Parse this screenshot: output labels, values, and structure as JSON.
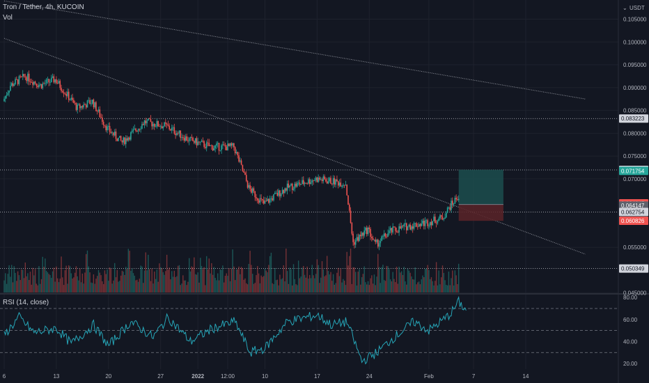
{
  "header": {
    "symbol_title": "Tron / Tether, 4h, KUCOIN",
    "volume_label": "Vol",
    "rsi_label": "RSI (14, close)",
    "currency": "USDT"
  },
  "colors": {
    "background": "#131722",
    "up": "#26a69a",
    "down": "#ef5350",
    "rsi_line": "#26a6b8",
    "grid": "#1e222d",
    "target_zone": "#1c4e4d",
    "stop_zone": "#5a2328"
  },
  "chart_data": [
    {
      "type": "candlestick",
      "title": "Tron / Tether, 4h, KUCOIN",
      "y_axis_ticks": [
        0.105,
        0.1,
        0.095,
        0.09,
        0.085,
        0.08,
        0.075,
        0.07,
        0.055,
        0.045
      ],
      "y_axis_tick_labels": [
        "0.105000",
        "0.100000",
        "0.095000",
        "0.090000",
        "0.085000",
        "0.080000",
        "0.075000",
        "0.070000",
        "0.055000",
        "0.045000"
      ],
      "ylim": [
        0.0448,
        0.1092
      ],
      "x_ticks": [
        "6",
        "13",
        "20",
        "27",
        "2022",
        "12:00",
        "10",
        "17",
        "24",
        "Feb",
        "7",
        "14"
      ],
      "x_dates": [
        "2021-12-06",
        "2021-12-13",
        "2021-12-20",
        "2021-12-27",
        "2022-01-01",
        "2022-01-05",
        "2022-01-10",
        "2022-01-17",
        "2022-01-24",
        "2022-02-01",
        "2022-02-07",
        "2022-02-14"
      ],
      "price_path": [
        {
          "date": "2021-12-06",
          "price": 0.087
        },
        {
          "date": "2021-12-07",
          "price": 0.0905
        },
        {
          "date": "2021-12-09",
          "price": 0.0925
        },
        {
          "date": "2021-12-11",
          "price": 0.0905
        },
        {
          "date": "2021-12-13",
          "price": 0.0918
        },
        {
          "date": "2021-12-16",
          "price": 0.0855
        },
        {
          "date": "2021-12-18",
          "price": 0.087
        },
        {
          "date": "2021-12-20",
          "price": 0.081
        },
        {
          "date": "2021-12-22",
          "price": 0.078
        },
        {
          "date": "2021-12-25",
          "price": 0.0825
        },
        {
          "date": "2021-12-28",
          "price": 0.0815
        },
        {
          "date": "2021-12-31",
          "price": 0.0785
        },
        {
          "date": "2022-01-03",
          "price": 0.077
        },
        {
          "date": "2022-01-06",
          "price": 0.077
        },
        {
          "date": "2022-01-08",
          "price": 0.068
        },
        {
          "date": "2022-01-10",
          "price": 0.0645
        },
        {
          "date": "2022-01-13",
          "price": 0.068
        },
        {
          "date": "2022-01-17",
          "price": 0.07
        },
        {
          "date": "2022-01-19",
          "price": 0.0695
        },
        {
          "date": "2022-01-21",
          "price": 0.069
        },
        {
          "date": "2022-01-22",
          "price": 0.056
        },
        {
          "date": "2022-01-24",
          "price": 0.059
        },
        {
          "date": "2022-01-25",
          "price": 0.0555
        },
        {
          "date": "2022-01-27",
          "price": 0.0585
        },
        {
          "date": "2022-01-29",
          "price": 0.0595
        },
        {
          "date": "2022-02-01",
          "price": 0.0605
        },
        {
          "date": "2022-02-03",
          "price": 0.0615
        },
        {
          "date": "2022-02-04",
          "price": 0.064
        },
        {
          "date": "2022-02-05",
          "price": 0.066
        }
      ],
      "price_labels": [
        {
          "text": "0.083223",
          "value": 0.083223,
          "style": "white"
        },
        {
          "text": "0.071969",
          "value": 0.071969,
          "style": "white"
        },
        {
          "text": "0.071754",
          "value": 0.071754,
          "style": "green"
        },
        {
          "text": "0.064647",
          "value": 0.064647,
          "style": "red"
        },
        {
          "text": "02:26:06",
          "value": 0.0637,
          "style": "red"
        },
        {
          "text": "0.064147",
          "value": 0.064147,
          "style": "gray"
        },
        {
          "text": "0.062754",
          "value": 0.062754,
          "style": "white"
        },
        {
          "text": "0.060826",
          "value": 0.060826,
          "style": "red"
        },
        {
          "text": "0.050349",
          "value": 0.050349,
          "style": "white"
        }
      ],
      "horizontal_levels": [
        0.083223,
        0.071969,
        0.062754,
        0.050349
      ],
      "trendlines": [
        {
          "start": {
            "date": "2021-12-06",
            "price": 0.109
          },
          "end": {
            "date": "2022-02-22",
            "price": 0.0875
          }
        },
        {
          "start": {
            "date": "2021-12-06",
            "price": 0.1008
          },
          "end": {
            "date": "2022-02-22",
            "price": 0.0535
          }
        }
      ],
      "position": {
        "start_date": "2022-02-05",
        "end_date": "2022-02-11",
        "entry": 0.0644,
        "target": 0.072,
        "stop": 0.0608
      }
    },
    {
      "type": "line",
      "title": "RSI (14, close)",
      "y_axis_ticks": [
        80,
        60,
        40,
        20
      ],
      "y_axis_tick_labels": [
        "80.00",
        "60.00",
        "40.00",
        "20.00"
      ],
      "ylim": [
        15,
        82
      ],
      "levels": [
        70,
        50,
        30
      ],
      "series": [
        {
          "name": "RSI (14, close)",
          "points": [
            {
              "date": "2021-12-06",
              "value": 46
            },
            {
              "date": "2021-12-08",
              "value": 62
            },
            {
              "date": "2021-12-10",
              "value": 48
            },
            {
              "date": "2021-12-13",
              "value": 52
            },
            {
              "date": "2021-12-15",
              "value": 38
            },
            {
              "date": "2021-12-18",
              "value": 55
            },
            {
              "date": "2021-12-20",
              "value": 36
            },
            {
              "date": "2021-12-23",
              "value": 58
            },
            {
              "date": "2021-12-26",
              "value": 44
            },
            {
              "date": "2021-12-28",
              "value": 62
            },
            {
              "date": "2021-12-31",
              "value": 40
            },
            {
              "date": "2022-01-03",
              "value": 52
            },
            {
              "date": "2022-01-06",
              "value": 58
            },
            {
              "date": "2022-01-08",
              "value": 30
            },
            {
              "date": "2022-01-10",
              "value": 34
            },
            {
              "date": "2022-01-13",
              "value": 58
            },
            {
              "date": "2022-01-17",
              "value": 64
            },
            {
              "date": "2022-01-19",
              "value": 55
            },
            {
              "date": "2022-01-21",
              "value": 58
            },
            {
              "date": "2022-01-23",
              "value": 22
            },
            {
              "date": "2022-01-25",
              "value": 30
            },
            {
              "date": "2022-01-27",
              "value": 42
            },
            {
              "date": "2022-01-30",
              "value": 58
            },
            {
              "date": "2022-02-01",
              "value": 50
            },
            {
              "date": "2022-02-03",
              "value": 60
            },
            {
              "date": "2022-02-04",
              "value": 66
            },
            {
              "date": "2022-02-05",
              "value": 76
            },
            {
              "date": "2022-02-06",
              "value": 68
            }
          ]
        }
      ]
    }
  ]
}
